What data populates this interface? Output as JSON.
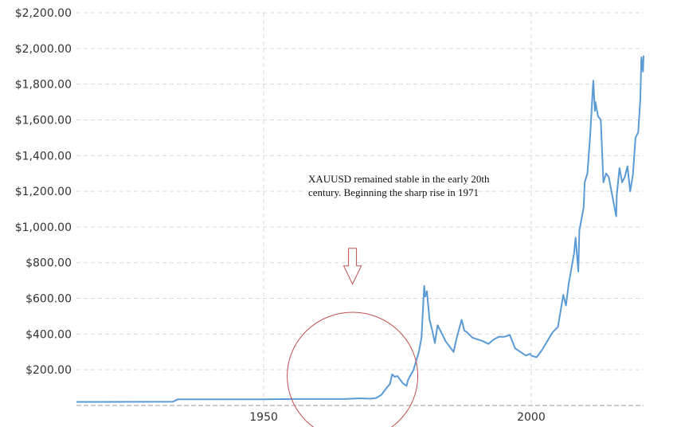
{
  "chart_data": {
    "type": "line",
    "title": "",
    "xlabel": "",
    "ylabel": "",
    "xlim": [
      1915,
      2021
    ],
    "ylim": [
      0,
      2200
    ],
    "x_ticks": [
      {
        "value": 1950,
        "label": "1950"
      },
      {
        "value": 2000,
        "label": "2000"
      }
    ],
    "y_ticks": [
      {
        "value": 200,
        "label": "$200.00"
      },
      {
        "value": 400,
        "label": "$400.00"
      },
      {
        "value": 600,
        "label": "$600.00"
      },
      {
        "value": 800,
        "label": "$800.00"
      },
      {
        "value": 1000,
        "label": "$1,000.00"
      },
      {
        "value": 1200,
        "label": "$1,200.00"
      },
      {
        "value": 1400,
        "label": "$1,400.00"
      },
      {
        "value": 1600,
        "label": "$1,600.00"
      },
      {
        "value": 1800,
        "label": "$1,800.00"
      },
      {
        "value": 2000,
        "label": "$2,000.00"
      },
      {
        "value": 2200,
        "label": "$2,200.00"
      }
    ],
    "grid": true,
    "line_color": "#5b9bd5",
    "series": [
      {
        "x": [
          1915,
          1933,
          1934,
          1940,
          1945,
          1950,
          1955,
          1960,
          1965,
          1968,
          1970,
          1971,
          1972,
          1973,
          1973.6,
          1974,
          1974.5,
          1975,
          1976,
          1976.7,
          1977,
          1978,
          1979,
          1979.5,
          1980.0,
          1980.2,
          1980.5,
          1981,
          1981.5,
          1982,
          1982.5,
          1983,
          1984,
          1985,
          1985.5,
          1986,
          1987,
          1987.5,
          1988,
          1989,
          1990,
          1991,
          1992,
          1993,
          1994,
          1995,
          1996,
          1997,
          1998,
          1999,
          1999.8,
          2000,
          2001,
          2002,
          2003,
          2004,
          2005,
          2006,
          2006.5,
          2007,
          2008,
          2008.3,
          2008.8,
          2009,
          2009.8,
          2010,
          2010.5,
          2011,
          2011.6,
          2011.9,
          2012,
          2012.5,
          2013,
          2013.5,
          2014,
          2014.5,
          2015,
          2015.5,
          2015.9,
          2016,
          2016.5,
          2017,
          2017.5,
          2018,
          2018.5,
          2019,
          2019.5,
          2020,
          2020.4,
          2020.6,
          2020.9,
          2021
        ],
        "y": [
          20,
          21,
          35,
          35,
          35,
          35,
          36,
          36,
          36,
          40,
          38,
          42,
          60,
          100,
          120,
          175,
          160,
          165,
          125,
          110,
          145,
          200,
          300,
          380,
          670,
          610,
          640,
          480,
          420,
          350,
          450,
          420,
          360,
          320,
          300,
          370,
          480,
          420,
          410,
          380,
          370,
          360,
          345,
          370,
          385,
          385,
          395,
          320,
          300,
          280,
          290,
          280,
          270,
          310,
          360,
          410,
          440,
          620,
          560,
          680,
          850,
          940,
          750,
          980,
          1110,
          1250,
          1300,
          1500,
          1820,
          1650,
          1700,
          1620,
          1600,
          1250,
          1300,
          1280,
          1200,
          1120,
          1060,
          1180,
          1330,
          1250,
          1280,
          1340,
          1200,
          1290,
          1500,
          1530,
          1720,
          1950,
          1870,
          1960
        ]
      }
    ],
    "annotations": [
      {
        "text": "XAUUSD remained stable in the early 20th century. Beginning the sharp rise in 1971"
      }
    ],
    "annotation_colors": {
      "circle": "#c0504d",
      "arrow": "#c0504d"
    }
  }
}
